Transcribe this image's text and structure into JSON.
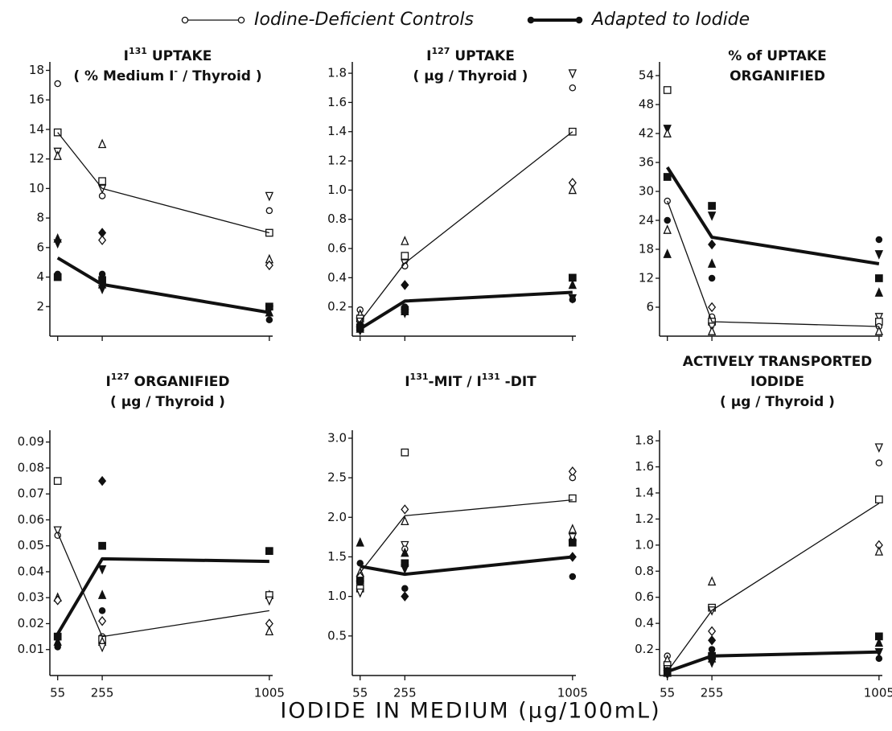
{
  "legend": [
    {
      "name": "Iodine-Deficient Controls",
      "filled": false,
      "line_width": 1.3
    },
    {
      "name": "Adapted to Iodide",
      "filled": true,
      "line_width": 4
    }
  ],
  "x_label": "IODIDE IN MEDIUM (μg/100mL)",
  "chart_data": [
    {
      "type": "line",
      "title": [
        [
          [
            "I",
            0
          ],
          [
            "131",
            1
          ],
          [
            " UPTAKE",
            0
          ]
        ],
        [
          [
            "( % Medium I",
            0
          ],
          [
            "-",
            1
          ],
          [
            " / Thyroid )",
            0
          ]
        ]
      ],
      "x": [
        55,
        255,
        1005
      ],
      "xlim": [
        20,
        1020
      ],
      "xticks": [
        55,
        255,
        1005
      ],
      "show_xtick_labels": false,
      "ylim": [
        0,
        18.3
      ],
      "yticks": [
        2,
        4,
        6,
        8,
        10,
        12,
        14,
        16,
        18
      ],
      "series": [
        {
          "values": [
            13.8,
            10,
            7
          ],
          "line_width": 1.3
        },
        {
          "values": [
            5.3,
            3.5,
            1.6
          ],
          "line_width": 4
        }
      ],
      "points": {
        "x": [
          55,
          55,
          55,
          55,
          55,
          55,
          55,
          55,
          255,
          255,
          255,
          255,
          255,
          255,
          255,
          255,
          255,
          255,
          1005,
          1005,
          1005,
          1005,
          1005,
          1005,
          1005,
          1005,
          1005
        ],
        "y": [
          17.1,
          13.8,
          12.5,
          12.2,
          6.6,
          6.3,
          4.2,
          4.0,
          13,
          10.5,
          10,
          9.5,
          7,
          6.5,
          4.2,
          3.8,
          3.5,
          3.2,
          9.5,
          8.5,
          7,
          5.2,
          4.8,
          2,
          1.8,
          1.6,
          1.1
        ],
        "marker": [
          "o",
          "s",
          "v",
          "t",
          "T",
          "V",
          "O",
          "S",
          "t",
          "s",
          "v",
          "o",
          "D",
          "d",
          "O",
          "S",
          "T",
          "V",
          "v",
          "o",
          "s",
          "t",
          "d",
          "S",
          "V",
          "T",
          "O"
        ]
      }
    },
    {
      "type": "line",
      "title": [
        [
          [
            "I",
            0
          ],
          [
            "127",
            1
          ],
          [
            " UPTAKE",
            0
          ]
        ],
        [
          [
            "( μg / Thyroid )",
            0
          ]
        ]
      ],
      "x": [
        55,
        255,
        1005
      ],
      "xlim": [
        20,
        1020
      ],
      "xticks": [
        55,
        255,
        1005
      ],
      "show_xtick_labels": false,
      "ylim": [
        0,
        1.85
      ],
      "yticks": [
        0.2,
        0.4,
        0.6,
        0.8,
        {
          "value": 1.0,
          "label": "1.0"
        },
        1.2,
        1.4,
        1.6,
        1.8
      ],
      "series": [
        {
          "values": [
            0.1,
            0.5,
            1.4
          ],
          "line_width": 1.3
        },
        {
          "values": [
            0.05,
            0.24,
            0.3
          ],
          "line_width": 4
        }
      ],
      "points": {
        "x": [
          55,
          55,
          55,
          55,
          55,
          55,
          55,
          55,
          255,
          255,
          255,
          255,
          255,
          255,
          255,
          255,
          255,
          255,
          1005,
          1005,
          1005,
          1005,
          1005,
          1005,
          1005,
          1005,
          1005
        ],
        "y": [
          0.18,
          0.15,
          0.12,
          0.1,
          0.08,
          0.06,
          0.05,
          0.04,
          0.65,
          0.55,
          0.5,
          0.48,
          0.35,
          0.35,
          0.2,
          0.18,
          0.17,
          0.16,
          1.8,
          1.7,
          1.4,
          1.05,
          1.0,
          0.4,
          0.35,
          0.26,
          0.25
        ],
        "marker": [
          "o",
          "t",
          "s",
          "v",
          "O",
          "S",
          "T",
          "V",
          "t",
          "s",
          "v",
          "o",
          "d",
          "D",
          "O",
          "S",
          "T",
          "V",
          "v",
          "o",
          "s",
          "d",
          "t",
          "S",
          "T",
          "V",
          "O"
        ]
      }
    },
    {
      "type": "line",
      "title": [
        [
          [
            "% of UPTAKE",
            0
          ]
        ],
        [
          [
            "ORGANIFIED",
            0
          ]
        ]
      ],
      "x": [
        55,
        255,
        1005
      ],
      "xlim": [
        20,
        1020
      ],
      "xticks": [
        55,
        255,
        1005
      ],
      "show_xtick_labels": false,
      "ylim": [
        0,
        56
      ],
      "yticks": [
        6,
        12,
        18,
        24,
        30,
        36,
        42,
        48,
        54
      ],
      "series": [
        {
          "values": [
            28,
            3,
            2
          ],
          "line_width": 1.3
        },
        {
          "values": [
            35,
            20.5,
            15
          ],
          "line_width": 4
        }
      ],
      "points": {
        "x": [
          55,
          55,
          55,
          55,
          55,
          55,
          55,
          55,
          255,
          255,
          255,
          255,
          255,
          255,
          255,
          255,
          255,
          255,
          1005,
          1005,
          1005,
          1005,
          1005,
          1005,
          1005,
          1005
        ],
        "y": [
          51,
          43,
          42,
          33,
          28,
          24,
          22,
          17,
          27,
          25,
          19,
          15,
          12,
          6,
          4,
          3,
          2,
          1,
          20,
          17,
          12,
          9,
          4,
          3,
          2,
          1
        ],
        "marker": [
          "s",
          "V",
          "t",
          "S",
          "o",
          "O",
          "t",
          "T",
          "S",
          "V",
          "D",
          "T",
          "O",
          "d",
          "o",
          "s",
          "v",
          "t",
          "O",
          "V",
          "S",
          "T",
          "v",
          "s",
          "o",
          "t"
        ]
      }
    },
    {
      "type": "line",
      "title": [
        [
          [
            "I",
            0
          ],
          [
            "127",
            1
          ],
          [
            " ORGANIFIED",
            0
          ]
        ],
        [
          [
            "( μg / Thyroid )",
            0
          ]
        ]
      ],
      "x": [
        55,
        255,
        1005
      ],
      "xlim": [
        20,
        1020
      ],
      "xticks": [
        55,
        255,
        1005
      ],
      "show_xtick_labels": true,
      "ylim": [
        0,
        0.093
      ],
      "yticks": [
        0.01,
        0.02,
        0.03,
        0.04,
        0.05,
        0.06,
        0.07,
        0.08,
        0.09
      ],
      "series": [
        {
          "values": [
            0.055,
            0.015,
            0.025
          ],
          "line_width": 1.3
        },
        {
          "values": [
            0.016,
            0.045,
            0.044
          ],
          "line_width": 4
        }
      ],
      "points": {
        "x": [
          55,
          55,
          55,
          55,
          55,
          55,
          55,
          55,
          255,
          255,
          255,
          255,
          255,
          255,
          255,
          255,
          255,
          255,
          1005,
          1005,
          1005,
          1005,
          1005,
          1005,
          1005
        ],
        "y": [
          0.075,
          0.056,
          0.054,
          0.03,
          0.029,
          0.015,
          0.013,
          0.011,
          0.075,
          0.05,
          0.041,
          0.031,
          0.025,
          0.021,
          0.015,
          0.014,
          0.013,
          0.011,
          0.048,
          0.048,
          0.031,
          0.031,
          0.029,
          0.02,
          0.017
        ],
        "marker": [
          "s",
          "v",
          "o",
          "t",
          "d",
          "S",
          "T",
          "O",
          "D",
          "S",
          "V",
          "T",
          "O",
          "d",
          "o",
          "s",
          "t",
          "v",
          "O",
          "S",
          "T",
          "s",
          "v",
          "d",
          "t"
        ]
      }
    },
    {
      "type": "line",
      "title": [
        [
          [
            "I",
            0
          ],
          [
            "131",
            1
          ],
          [
            "-MIT / I",
            0
          ],
          [
            "131",
            1
          ],
          [
            " -DIT",
            0
          ]
        ]
      ],
      "x": [
        55,
        255,
        1005
      ],
      "xlim": [
        20,
        1020
      ],
      "xticks": [
        55,
        255,
        1005
      ],
      "show_xtick_labels": true,
      "ylim": [
        0,
        3.05
      ],
      "yticks": [
        0.5,
        {
          "value": 1.0,
          "label": "1.0"
        },
        1.5,
        {
          "value": 2.0,
          "label": "2.0"
        },
        2.5,
        {
          "value": 3.0,
          "label": "3.0"
        }
      ],
      "series": [
        {
          "values": [
            1.3,
            2.02,
            2.22
          ],
          "line_width": 1.3
        },
        {
          "values": [
            1.38,
            1.28,
            1.5
          ],
          "line_width": 4
        }
      ],
      "points": {
        "x": [
          55,
          55,
          55,
          55,
          55,
          55,
          55,
          55,
          255,
          255,
          255,
          255,
          255,
          255,
          255,
          255,
          255,
          255,
          1005,
          1005,
          1005,
          1005,
          1005,
          1005,
          1005,
          1005,
          1005
        ],
        "y": [
          1.68,
          1.42,
          1.3,
          1.25,
          1.2,
          1.15,
          1.1,
          1.05,
          2.82,
          2.1,
          1.95,
          1.65,
          1.6,
          1.55,
          1.42,
          1.35,
          1.1,
          1.0,
          2.58,
          2.5,
          2.24,
          1.85,
          1.75,
          1.75,
          1.68,
          1.5,
          1.25
        ],
        "marker": [
          "T",
          "O",
          "t",
          "d",
          "S",
          "V",
          "s",
          "v",
          "s",
          "d",
          "t",
          "v",
          "o",
          "T",
          "S",
          "V",
          "O",
          "D",
          "d",
          "o",
          "s",
          "t",
          "T",
          "v",
          "S",
          "D",
          "O"
        ]
      }
    },
    {
      "type": "line",
      "title": [
        [
          [
            "ACTIVELY TRANSPORTED",
            0
          ]
        ],
        [
          [
            "IODIDE",
            0
          ]
        ],
        [
          [
            "( μg / Thyroid )",
            0
          ]
        ]
      ],
      "x": [
        55,
        255,
        1005
      ],
      "xlim": [
        20,
        1020
      ],
      "xticks": [
        55,
        255,
        1005
      ],
      "show_xtick_labels": true,
      "ylim": [
        0,
        1.85
      ],
      "yticks": [
        0.2,
        0.4,
        0.6,
        0.8,
        {
          "value": 1.0,
          "label": "1.0"
        },
        1.2,
        1.4,
        1.6,
        1.8
      ],
      "series": [
        {
          "values": [
            0.03,
            0.5,
            1.32
          ],
          "line_width": 1.3
        },
        {
          "values": [
            0.03,
            0.15,
            0.18
          ],
          "line_width": 4
        }
      ],
      "points": {
        "x": [
          55,
          55,
          55,
          55,
          55,
          55,
          55,
          55,
          255,
          255,
          255,
          255,
          255,
          255,
          255,
          255,
          255,
          1005,
          1005,
          1005,
          1005,
          1005,
          1005,
          1005,
          1005,
          1005
        ],
        "y": [
          0.15,
          0.12,
          0.08,
          0.05,
          0.04,
          0.03,
          0.02,
          0.01,
          0.72,
          0.52,
          0.5,
          0.34,
          0.27,
          0.2,
          0.15,
          0.13,
          0.1,
          1.75,
          1.63,
          1.35,
          1.0,
          0.95,
          0.3,
          0.25,
          0.18,
          0.13
        ],
        "marker": [
          "o",
          "t",
          "s",
          "v",
          "O",
          "S",
          "T",
          "V",
          "t",
          "s",
          "v",
          "d",
          "D",
          "O",
          "S",
          "T",
          "V",
          "v",
          "o",
          "s",
          "d",
          "t",
          "S",
          "T",
          "V",
          "O"
        ]
      }
    }
  ]
}
